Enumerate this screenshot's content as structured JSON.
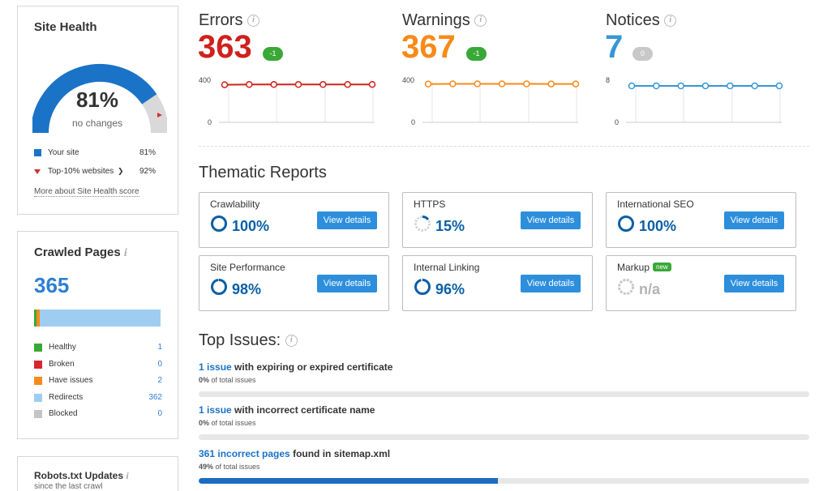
{
  "site_health": {
    "title": "Site Health",
    "percent_label": "81%",
    "percent": 81,
    "status": "no changes",
    "legend": [
      {
        "label": "Your site",
        "value": "81%",
        "color": "#1a73c6"
      },
      {
        "label": "Top-10% websites",
        "value": "92%",
        "color": "#d0312d"
      }
    ],
    "more_link": "More about Site Health score"
  },
  "crawled_pages": {
    "title": "Crawled Pages",
    "count": "365",
    "rows": [
      {
        "label": "Healthy",
        "value": "1",
        "color": "#3aa837"
      },
      {
        "label": "Broken",
        "value": "0",
        "color": "#d9262c"
      },
      {
        "label": "Have issues",
        "value": "2",
        "color": "#f58a1f"
      },
      {
        "label": "Redirects",
        "value": "362",
        "color": "#9fcdf1"
      },
      {
        "label": "Blocked",
        "value": "0",
        "color": "#c4c4c4"
      }
    ]
  },
  "robots": {
    "title": "Robots.txt Updates",
    "subtitle": "since the last crawl"
  },
  "metrics": [
    {
      "title": "Errors",
      "count": "363",
      "delta": "-1",
      "color": "#d0211c",
      "pill_color": "#3aa837",
      "axis_top": "400",
      "axis_bottom": "0",
      "series": [
        360,
        362,
        362,
        362,
        362,
        363,
        363
      ],
      "max": 400
    },
    {
      "title": "Warnings",
      "count": "367",
      "delta": "-1",
      "color": "#f78a18",
      "pill_color": "#3aa837",
      "axis_top": "400",
      "axis_bottom": "0",
      "series": [
        366,
        368,
        368,
        368,
        368,
        367,
        367
      ],
      "max": 400
    },
    {
      "title": "Notices",
      "count": "7",
      "delta": "0",
      "color": "#3596d6",
      "pill_color": "#c8c8c8",
      "axis_top": "8",
      "axis_bottom": "0",
      "series": [
        7,
        7,
        7,
        7,
        7,
        7,
        7
      ],
      "max": 8
    }
  ],
  "thematic": {
    "title": "Thematic Reports",
    "button_label": "View details",
    "new_badge": "new",
    "cards": [
      {
        "name": "Crawlability",
        "value": "100%",
        "pct": 100
      },
      {
        "name": "HTTPS",
        "value": "15%",
        "pct": 15
      },
      {
        "name": "International SEO",
        "value": "100%",
        "pct": 100
      },
      {
        "name": "Site Performance",
        "value": "98%",
        "pct": 98
      },
      {
        "name": "Internal Linking",
        "value": "96%",
        "pct": 96
      },
      {
        "name": "Markup",
        "value": "n/a",
        "pct": null
      }
    ]
  },
  "top_issues": {
    "title": "Top Issues:",
    "items": [
      {
        "link": "1 issue",
        "text": " with expiring or expired certificate",
        "pct_label": "0%",
        "sub": " of total issues",
        "pct": 0
      },
      {
        "link": "1 issue",
        "text": " with incorrect certificate name",
        "pct_label": "0%",
        "sub": " of total issues",
        "pct": 0
      },
      {
        "link": "361 incorrect pages",
        "text": " found in sitemap.xml",
        "pct_label": "49%",
        "sub": " of total issues",
        "pct": 49
      }
    ]
  }
}
